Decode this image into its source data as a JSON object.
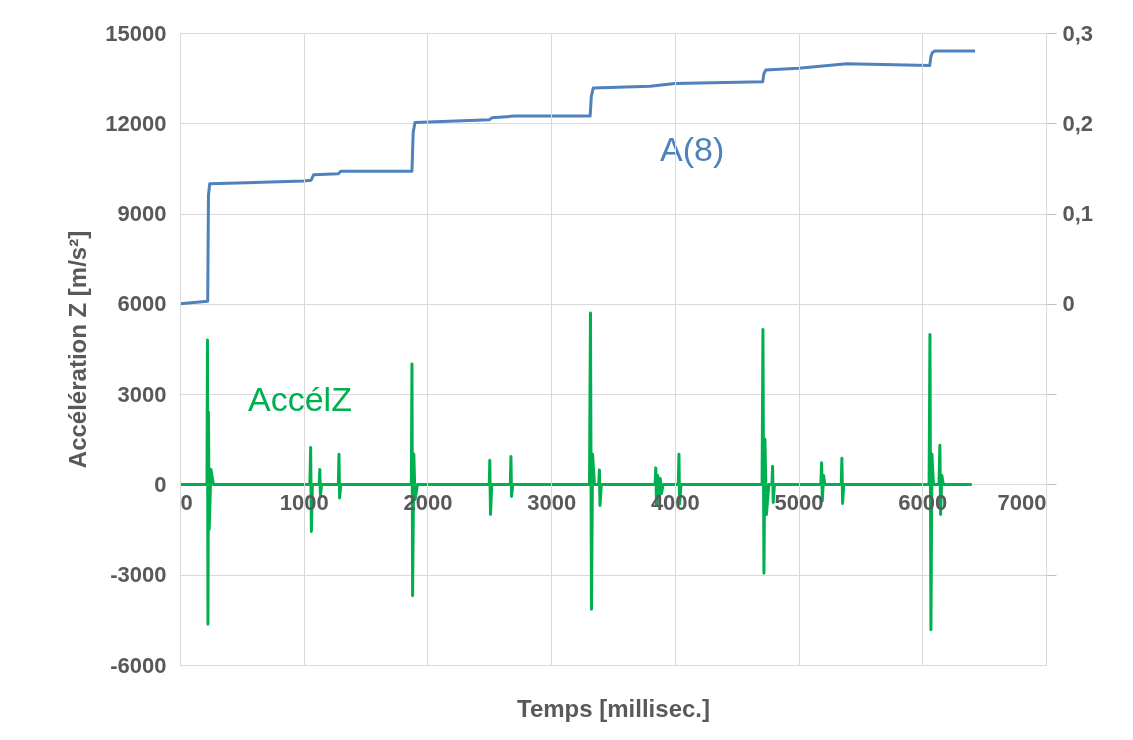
{
  "chart_data": {
    "type": "line",
    "xlabel": "Temps [millisec.]",
    "ylabel": "Accélération Z [m/s²]",
    "xlim": [
      0,
      7000
    ],
    "xticks": [
      0,
      1000,
      2000,
      3000,
      4000,
      5000,
      6000,
      7000
    ],
    "ylim": [
      -6000,
      15000
    ],
    "yticks": [
      -6000,
      -3000,
      0,
      3000,
      6000,
      9000,
      12000,
      15000
    ],
    "y2lim": [
      -0.4,
      0.3
    ],
    "y2ticks": [
      {
        "value": -0.3,
        "label": null
      },
      {
        "value": -0.2,
        "label": null
      },
      {
        "value": -0.1,
        "label": null
      },
      {
        "value": 0,
        "label": "0"
      },
      {
        "value": 0.1,
        "label": "0,1"
      },
      {
        "value": 0.2,
        "label": "0,2"
      },
      {
        "value": 0.3,
        "label": "0,3"
      }
    ],
    "grid": true,
    "marker": "none",
    "line_style": "solid",
    "series": [
      {
        "name": "A(8)",
        "color": "#4f81bd",
        "axis": "y2",
        "x": [
          0,
          224,
          230,
          240,
          1000,
          1060,
          1080,
          1280,
          1300,
          1875,
          1885,
          1900,
          2500,
          2520,
          2700,
          3315,
          3325,
          3340,
          3800,
          4000,
          4710,
          4720,
          4735,
          5000,
          5390,
          6060,
          6070,
          6080,
          6100,
          6427
        ],
        "values": [
          0,
          0.003,
          0.12,
          0.133,
          0.136,
          0.137,
          0.143,
          0.144,
          0.147,
          0.147,
          0.19,
          0.201,
          0.204,
          0.206,
          0.208,
          0.208,
          0.23,
          0.239,
          0.241,
          0.244,
          0.246,
          0.255,
          0.259,
          0.261,
          0.266,
          0.264,
          0.274,
          0.278,
          0.28,
          0.28
        ]
      },
      {
        "name": "AccélZ",
        "color": "#00b050",
        "x": [
          0,
          218,
          222,
          226,
          230,
          236,
          250,
          270,
          1050,
          1056,
          1062,
          1070,
          1125,
          1130,
          1135,
          1145,
          1280,
          1285,
          1290,
          1300,
          1870,
          1875,
          1880,
          1890,
          1900,
          1920,
          2500,
          2504,
          2510,
          2520,
          2670,
          2675,
          2680,
          2690,
          3310,
          3318,
          3326,
          3335,
          3350,
          3385,
          3390,
          3395,
          3405,
          3840,
          3846,
          3852,
          3862,
          3872,
          3882,
          3892,
          3905,
          4028,
          4033,
          4038,
          4050,
          4705,
          4712,
          4720,
          4728,
          4740,
          4760,
          4785,
          4790,
          4795,
          4805,
          5180,
          5186,
          5192,
          5202,
          5212,
          5345,
          5350,
          5356,
          5365,
          6055,
          6062,
          6070,
          6078,
          6090,
          6135,
          6142,
          6148,
          6158,
          6170,
          6400
        ],
        "values": [
          0,
          0,
          4800,
          -4650,
          2400,
          -1500,
          500,
          0,
          0,
          1230,
          -1560,
          0,
          0,
          500,
          -350,
          0,
          0,
          1000,
          -450,
          0,
          0,
          4000,
          -3700,
          1000,
          -500,
          0,
          0,
          800,
          -1000,
          0,
          0,
          930,
          -400,
          0,
          0,
          5700,
          -4150,
          1000,
          0,
          0,
          480,
          -700,
          0,
          0,
          550,
          -700,
          300,
          -400,
          200,
          -300,
          0,
          0,
          1000,
          -650,
          0,
          0,
          5150,
          -2950,
          1500,
          -1000,
          0,
          0,
          600,
          -600,
          0,
          0,
          720,
          -550,
          300,
          0,
          0,
          870,
          -630,
          0,
          0,
          4980,
          -4830,
          1000,
          0,
          0,
          1300,
          -1000,
          300,
          0,
          0
        ]
      }
    ]
  }
}
